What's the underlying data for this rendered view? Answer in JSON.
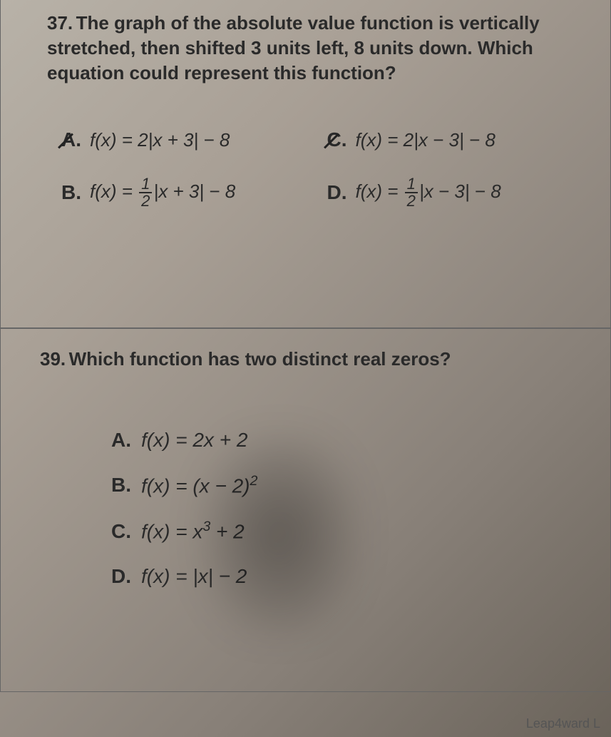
{
  "q37": {
    "number": "37.",
    "text": "The graph of the absolute value function is vertically stretched, then shifted 3 units left, 8 units down. Which equation could represent this function?",
    "options": {
      "A": {
        "letter": "A.",
        "func": "f(x) = 2|x + 3| − 8",
        "struck": true
      },
      "C": {
        "letter": "C.",
        "func": "f(x) = 2|x − 3| − 8",
        "struck": true
      },
      "B": {
        "letter": "B.",
        "func_prefix": "f(x) = ",
        "frac_num": "1",
        "frac_den": "2",
        "func_suffix": "|x + 3| − 8",
        "struck": false
      },
      "D": {
        "letter": "D.",
        "func_prefix": "f(x) = ",
        "frac_num": "1",
        "frac_den": "2",
        "func_suffix": "|x − 3| − 8",
        "struck": false
      }
    }
  },
  "q39": {
    "number": "39.",
    "text": "Which function has two distinct real zeros?",
    "options": {
      "A": {
        "letter": "A.",
        "html": "f(x) = 2x + 2"
      },
      "B": {
        "letter": "B.",
        "html": "f(x) = (x − 2)²"
      },
      "C": {
        "letter": "C.",
        "html": "f(x) = x³ + 2"
      },
      "D": {
        "letter": "D.",
        "html": "f(x) = |x| − 2"
      }
    }
  },
  "footer": "Leap4ward L",
  "colors": {
    "text": "#2a2a2a",
    "border": "#666666",
    "bg_light": "#b8b2a8",
    "bg_dark": "#6a635a"
  },
  "typography": {
    "question_fontsize": 26,
    "option_fontsize": 26,
    "font_family": "Arial",
    "question_weight": "bold"
  }
}
